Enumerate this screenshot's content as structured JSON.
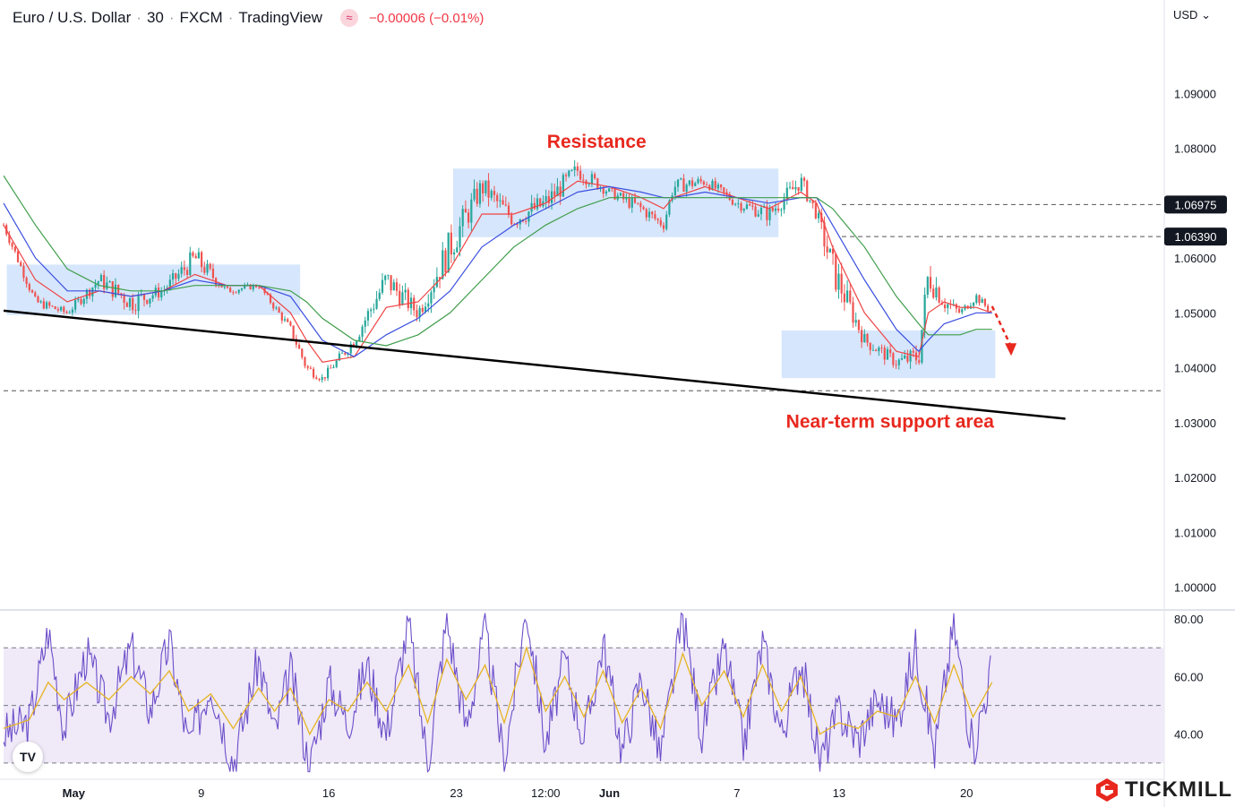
{
  "header": {
    "title": "Euro / U.S. Dollar",
    "interval": "30",
    "broker": "FXCM",
    "platform": "TradingView",
    "indicator_glyph": "≈",
    "change": "−0.00006 (−0.01%)"
  },
  "currency_selector": "USD",
  "tradingview_logo": "TV",
  "brand": "TICKMILL",
  "colors": {
    "price": "#26a69a",
    "down": "#ef5350",
    "ma_fast": "#ef4444",
    "ma_mid": "#3b4fe0",
    "ma_slow": "#3f9d4a",
    "zone": "#cfe2fb",
    "rsi": "#6d4fc9",
    "rsi_ma": "#e6b422",
    "rsi_band": "#efe9f8",
    "annotation": "#e8281e"
  },
  "chart_data": [
    {
      "type": "line",
      "panel": "price",
      "y_ticks": [
        "1.09000",
        "1.08000",
        "1.06000",
        "1.05000",
        "1.04000",
        "1.03000",
        "1.02000",
        "1.01000",
        "1.00000"
      ],
      "ylim": [
        0.996,
        1.1005
      ],
      "x_ticks": [
        {
          "label": "May",
          "x": 2.2
        },
        {
          "label": "9",
          "x": 6.2
        },
        {
          "label": "16",
          "x": 10.2
        },
        {
          "label": "23",
          "x": 14.2
        },
        {
          "label": "12:00",
          "x": 17.0
        },
        {
          "label": "Jun",
          "x": 19.0
        },
        {
          "label": "7",
          "x": 23.0
        },
        {
          "label": "13",
          "x": 26.2
        },
        {
          "label": "20",
          "x": 30.2
        }
      ],
      "xlim": [
        0,
        36.4
      ],
      "price_labels": [
        {
          "label": "1.06975",
          "value": 1.06975
        },
        {
          "label": "1.06390",
          "value": 1.0639
        }
      ],
      "support_level": 1.0358,
      "x": [
        0,
        1,
        2,
        3,
        4,
        5,
        6,
        7,
        8,
        9,
        9.5,
        10,
        11,
        12,
        13,
        14,
        15,
        16,
        17,
        18,
        19,
        20,
        20.7,
        21,
        22,
        23,
        24,
        25,
        25.5,
        26,
        27,
        28,
        28.7,
        29,
        29.5,
        30,
        30.5,
        31
      ],
      "close": [
        1.066,
        1.052,
        1.05,
        1.056,
        1.052,
        1.054,
        1.06,
        1.054,
        1.055,
        1.047,
        1.04,
        1.038,
        1.045,
        1.056,
        1.05,
        1.062,
        1.073,
        1.067,
        1.07,
        1.076,
        1.072,
        1.069,
        1.066,
        1.073,
        1.074,
        1.07,
        1.068,
        1.074,
        1.068,
        1.058,
        1.045,
        1.041,
        1.042,
        1.057,
        1.052,
        1.05,
        1.053,
        1.05
      ],
      "high": [
        1.067,
        1.054,
        1.052,
        1.058,
        1.063,
        1.057,
        1.062,
        1.056,
        1.056,
        1.048,
        1.042,
        1.04,
        1.047,
        1.06,
        1.055,
        1.074,
        1.076,
        1.075,
        1.078,
        1.079,
        1.073,
        1.071,
        1.069,
        1.076,
        1.076,
        1.072,
        1.074,
        1.077,
        1.069,
        1.061,
        1.048,
        1.044,
        1.05,
        1.06,
        1.055,
        1.052,
        1.055,
        1.052
      ],
      "low": [
        1.062,
        1.049,
        1.048,
        1.05,
        1.051,
        1.051,
        1.05,
        1.052,
        1.053,
        1.043,
        1.036,
        1.036,
        1.04,
        1.046,
        1.046,
        1.055,
        1.064,
        1.065,
        1.066,
        1.069,
        1.068,
        1.063,
        1.064,
        1.068,
        1.07,
        1.066,
        1.065,
        1.068,
        1.062,
        1.042,
        1.04,
        1.037,
        1.038,
        1.042,
        1.045,
        1.048,
        1.05,
        1.049
      ],
      "series": [
        {
          "name": "",
          "values": [
            1.066,
            1.056,
            1.052,
            1.054,
            1.053,
            1.054,
            1.057,
            1.055,
            1.055,
            1.05,
            1.045,
            1.041,
            1.042,
            1.051,
            1.052,
            1.058,
            1.068,
            1.068,
            1.07,
            1.074,
            1.073,
            1.071,
            1.069,
            1.071,
            1.073,
            1.071,
            1.069,
            1.072,
            1.07,
            1.062,
            1.05,
            1.043,
            1.042,
            1.05,
            1.052,
            1.051,
            1.051,
            1.05
          ]
        },
        {
          "name": "",
          "values": [
            1.07,
            1.06,
            1.054,
            1.054,
            1.053,
            1.054,
            1.056,
            1.055,
            1.055,
            1.053,
            1.049,
            1.045,
            1.042,
            1.046,
            1.049,
            1.054,
            1.062,
            1.066,
            1.069,
            1.072,
            1.073,
            1.072,
            1.071,
            1.071,
            1.072,
            1.071,
            1.07,
            1.071,
            1.071,
            1.066,
            1.056,
            1.047,
            1.043,
            1.045,
            1.048,
            1.049,
            1.05,
            1.05
          ]
        },
        {
          "name": "",
          "values": [
            1.075,
            1.066,
            1.058,
            1.055,
            1.054,
            1.054,
            1.055,
            1.055,
            1.055,
            1.054,
            1.052,
            1.049,
            1.045,
            1.044,
            1.046,
            1.05,
            1.056,
            1.062,
            1.066,
            1.069,
            1.071,
            1.071,
            1.071,
            1.071,
            1.071,
            1.071,
            1.071,
            1.071,
            1.071,
            1.069,
            1.062,
            1.053,
            1.048,
            1.046,
            1.046,
            1.046,
            1.047,
            1.047
          ]
        }
      ],
      "zones": [
        {
          "x0": 0.1,
          "x1": 9.3,
          "y0": 1.0496,
          "y1": 1.0588
        },
        {
          "x0": 14.1,
          "x1": 24.3,
          "y0": 1.0638,
          "y1": 1.0763
        },
        {
          "x0": 24.4,
          "x1": 31.1,
          "y0": 1.0381,
          "y1": 1.0468
        }
      ],
      "trendline": {
        "x0": 0,
        "y0": 1.0504,
        "x1": 33.3,
        "y1": 1.0307
      },
      "projection": {
        "x0": 31.0,
        "y0": 1.0512,
        "x1": 31.6,
        "y1": 1.0425
      },
      "annotations": [
        {
          "text": "Resistance",
          "x": 18.6,
          "y": 1.0814
        },
        {
          "text": "Near-term support area",
          "x": 27.8,
          "y": 1.0304
        }
      ]
    },
    {
      "type": "line",
      "panel": "rsi",
      "y_ticks": [
        "80.00",
        "60.00",
        "40.00"
      ],
      "ylim": [
        25,
        82.5
      ],
      "bands": [
        70,
        50,
        30
      ],
      "x": [
        0,
        0.8,
        1.4,
        1.9,
        2.6,
        3.3,
        4.0,
        4.6,
        5.2,
        5.8,
        6.5,
        7.2,
        8.0,
        8.5,
        9.0,
        9.6,
        10.2,
        10.8,
        11.4,
        12.0,
        12.7,
        13.3,
        13.9,
        14.5,
        15.1,
        15.7,
        16.4,
        17.0,
        17.6,
        18.2,
        18.8,
        19.4,
        20.0,
        20.6,
        21.3,
        21.9,
        22.6,
        23.2,
        23.8,
        24.4,
        25.0,
        25.6,
        26.2,
        26.8,
        27.4,
        28.0,
        28.6,
        29.2,
        29.8,
        30.4,
        31.0
      ],
      "values": [
        40,
        44,
        76,
        42,
        68,
        46,
        70,
        48,
        72,
        36,
        58,
        30,
        66,
        40,
        62,
        28,
        58,
        44,
        64,
        40,
        78,
        30,
        80,
        42,
        76,
        30,
        84,
        36,
        66,
        38,
        72,
        34,
        60,
        32,
        80,
        40,
        70,
        36,
        72,
        40,
        66,
        30,
        48,
        38,
        52,
        44,
        70,
        34,
        78,
        34,
        64
      ],
      "ma": [
        42,
        45,
        58,
        52,
        58,
        52,
        60,
        54,
        62,
        48,
        54,
        42,
        56,
        48,
        56,
        40,
        52,
        48,
        58,
        48,
        64,
        44,
        66,
        52,
        64,
        44,
        70,
        48,
        60,
        46,
        62,
        44,
        56,
        42,
        68,
        50,
        62,
        46,
        64,
        48,
        60,
        40,
        44,
        42,
        48,
        46,
        60,
        44,
        64,
        46,
        58
      ]
    }
  ]
}
